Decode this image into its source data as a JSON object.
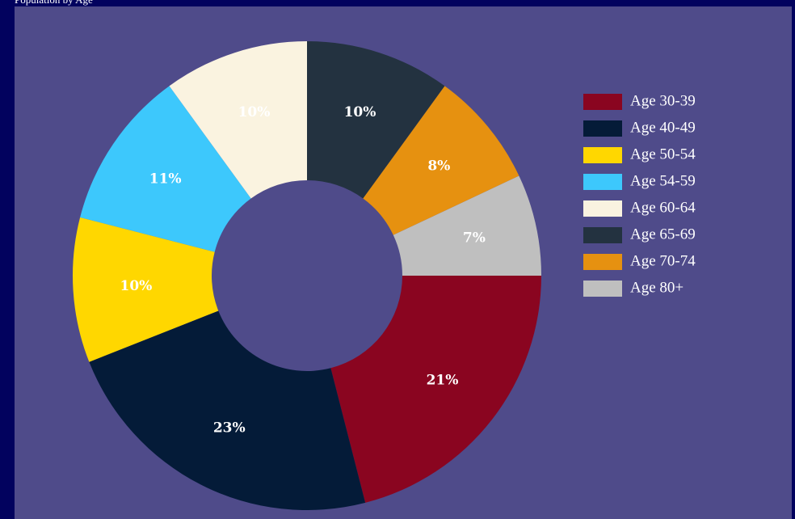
{
  "chart_data": {
    "type": "donut",
    "title": "Population by Age",
    "categories": [
      "Age 30-39",
      "Age 40-49",
      "Age 50-54",
      "Age 54-59",
      "Age 60-64",
      "Age 65-69",
      "Age 70-74",
      "Age 80+"
    ],
    "values": [
      21,
      23,
      10,
      11,
      10,
      10,
      8,
      7
    ],
    "value_labels": [
      "21%",
      "23%",
      "10%",
      "11%",
      "10%",
      "10%",
      "8%",
      "7%"
    ],
    "colors": [
      "#8a0520",
      "#041b38",
      "#ffd700",
      "#3dc8fc",
      "#faf3e0",
      "#233240",
      "#e69110",
      "#bfbfbf"
    ],
    "legend": "right"
  }
}
